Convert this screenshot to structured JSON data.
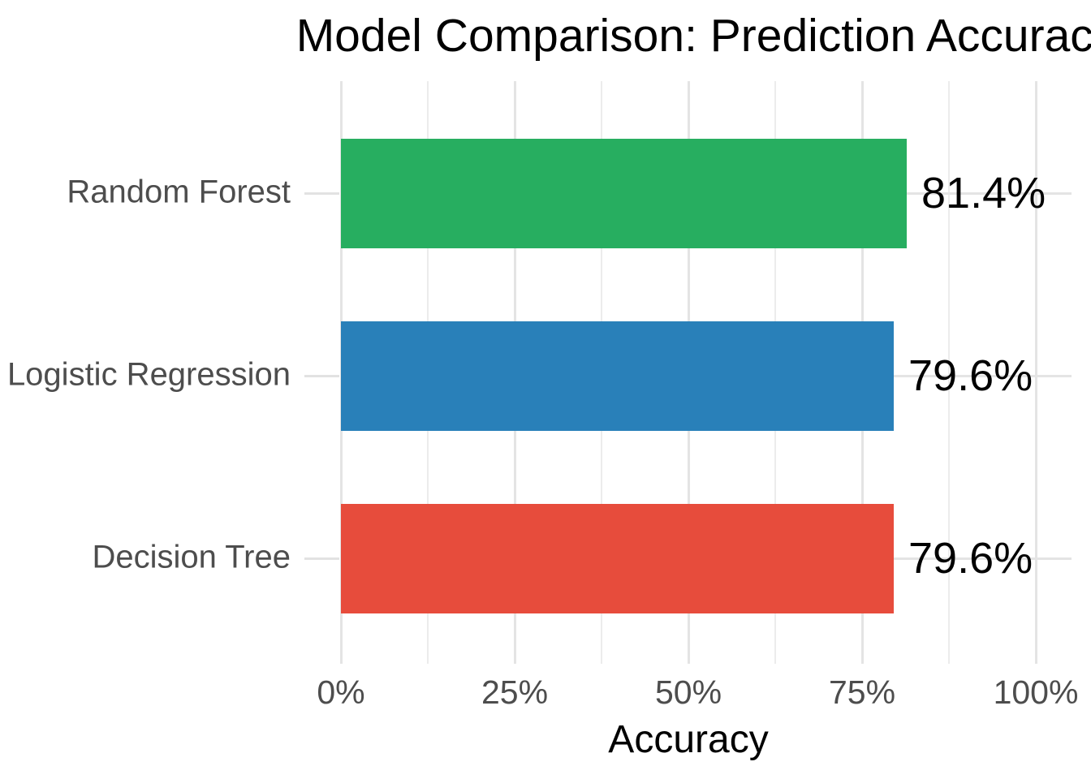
{
  "chart_data": {
    "type": "bar",
    "orientation": "horizontal",
    "title": "Model Comparison: Prediction Accuracy",
    "title_visible_clipped": "Model Comparison: Prediction Accura",
    "xlabel": "Accuracy",
    "ylabel": "",
    "categories": [
      "Random Forest",
      "Logistic Regression",
      "Decision Tree"
    ],
    "values": [
      81.4,
      79.6,
      79.6
    ],
    "value_labels": [
      "81.4%",
      "79.6%",
      "79.6%"
    ],
    "bar_colors": [
      "#27ae60",
      "#2980b9",
      "#e74c3c"
    ],
    "xlim": [
      0,
      100
    ],
    "x_ticks": [
      0,
      25,
      50,
      75,
      100
    ],
    "x_tick_labels": [
      "0%",
      "25%",
      "50%",
      "75%",
      "100%"
    ],
    "x_minor_ticks": [
      12.5,
      37.5,
      62.5,
      87.5
    ],
    "grid": true,
    "legend": false,
    "style": {
      "background": "#ffffff",
      "grid_major_color": "#e4e4e4",
      "grid_minor_color": "#ececec",
      "axis_tick_color": "#e2e2e2",
      "axis_text_color": "#4d4d4d",
      "title_color": "#000000",
      "value_label_color": "#000000"
    }
  }
}
